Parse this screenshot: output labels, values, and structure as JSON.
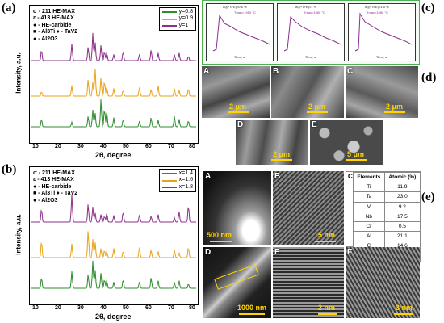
{
  "panel_labels": {
    "a": "(a)",
    "b": "(b)",
    "c": "(c)",
    "d": "(d)",
    "e": "(e)"
  },
  "axes": {
    "y_label": "Intensity, a.u.",
    "x_label": "2θ, degree",
    "x_ticks": [
      "10",
      "20",
      "30",
      "40",
      "50",
      "60",
      "70",
      "80"
    ]
  },
  "phase_legend_a": [
    "σ - 211 HE-MAX",
    "ε - 413 HE-MAX",
    "● - HE-carbide",
    "■ - Al3Ti  ♦ - TaV2",
    "● - Al2O3"
  ],
  "phase_legend_b": [
    "σ - 211 HE-MAX",
    "ε - 413 HE-MAX",
    "● - HE-carbide",
    "■ - Al3Ti  ♦ - TaV2",
    "● - Al2O3"
  ],
  "legend_a": [
    {
      "label": "y=0.8",
      "color": "#2e8b2e"
    },
    {
      "label": "y=0.9",
      "color": "#e8a317"
    },
    {
      "label": "y=1",
      "color": "#8b2f8b"
    }
  ],
  "legend_b": [
    {
      "label": "x=1.4",
      "color": "#2e8b2e"
    },
    {
      "label": "x=1.6",
      "color": "#e8a317"
    },
    {
      "label": "x=1.8",
      "color": "#8b2f8b"
    }
  ],
  "hkl_b": [
    "002",
    "004",
    "100",
    "101",
    "102",
    "103",
    "104",
    "105",
    "106",
    "008",
    "107",
    "110",
    "108",
    "112",
    "109",
    "116",
    "201",
    "203"
  ],
  "tga": [
    {
      "title": "wₜ(PTFE)=0.5 %",
      "peak": "Tmax=1950 °C",
      "time_label": "Time, s"
    },
    {
      "title": "wₜ(PTFE)=1 %",
      "peak": "Tmax=1960 °C",
      "time_label": "Time, s"
    },
    {
      "title": "wₜ(PTFE)=1.5 %",
      "peak": "Tmax=1980 °C",
      "time_label": "Time, s"
    }
  ],
  "sem_d": [
    {
      "letter": "A",
      "scale": "2 μm"
    },
    {
      "letter": "B",
      "scale": "2 μm"
    },
    {
      "letter": "C",
      "scale": "2 μm"
    },
    {
      "letter": "D",
      "scale": "2 μm"
    },
    {
      "letter": "E",
      "scale": "5 μm"
    }
  ],
  "tem_e": [
    {
      "letter": "A",
      "scale": "500 nm"
    },
    {
      "letter": "B",
      "scale": "5 nm"
    },
    {
      "letter": "D",
      "scale": "1000 nm"
    },
    {
      "letter": "E",
      "scale": "2 nm"
    },
    {
      "letter": "F",
      "scale": "3 nm"
    }
  ],
  "table_e": {
    "letter": "C",
    "headers": [
      "Elements",
      "Atomic (%)"
    ],
    "rows": [
      [
        "Ti",
        "11.9"
      ],
      [
        "Ta",
        "23.0"
      ],
      [
        "V",
        "9.2"
      ],
      [
        "Nb",
        "17.5"
      ],
      [
        "Cr",
        "0.5"
      ],
      [
        "Al",
        "21.1"
      ],
      [
        "C",
        "14.6"
      ],
      [
        "O",
        "2.2"
      ]
    ]
  }
}
